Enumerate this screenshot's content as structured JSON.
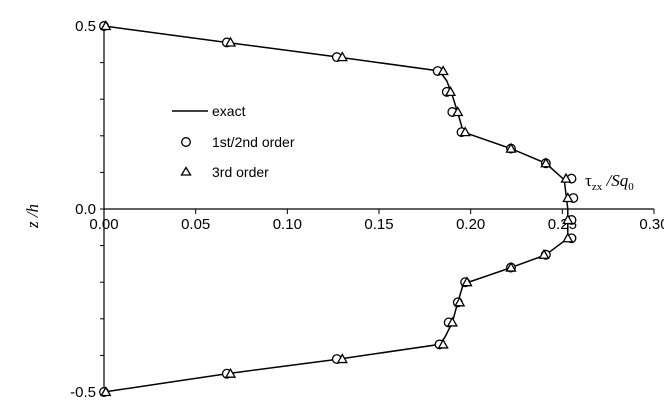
{
  "chart_data": {
    "type": "scatter",
    "xlabel": {
      "main": "τ",
      "sub": "zx",
      "rest": " /Sq",
      "sub2": "0"
    },
    "ylabel": "z /h",
    "xlim": [
      0,
      0.3
    ],
    "ylim": [
      -0.5,
      0.5
    ],
    "xticks": [
      "0.00",
      "0.05",
      "0.10",
      "0.15",
      "0.20",
      "0.25",
      "0.30"
    ],
    "xtick_values": [
      0,
      0.05,
      0.1,
      0.15,
      0.2,
      0.25,
      0.3
    ],
    "yticks": [
      "0.5",
      "0.0",
      "-0.5"
    ],
    "ytick_values": [
      0.5,
      0.0,
      -0.5
    ],
    "grid": false,
    "legend_position": "upper-left",
    "series": [
      {
        "name": "exact",
        "style": "line",
        "points": [
          [
            0.0,
            0.5
          ],
          [
            0.067,
            0.455
          ],
          [
            0.128,
            0.415
          ],
          [
            0.183,
            0.377
          ],
          [
            0.187,
            0.35
          ],
          [
            0.19,
            0.31
          ],
          [
            0.193,
            0.263
          ],
          [
            0.196,
            0.21
          ],
          [
            0.222,
            0.165
          ],
          [
            0.241,
            0.125
          ],
          [
            0.251,
            0.08
          ],
          [
            0.253,
            0.0
          ],
          [
            0.253,
            -0.08
          ],
          [
            0.241,
            -0.125
          ],
          [
            0.222,
            -0.16
          ],
          [
            0.196,
            -0.205
          ],
          [
            0.193,
            -0.255
          ],
          [
            0.19,
            -0.31
          ],
          [
            0.186,
            -0.35
          ],
          [
            0.183,
            -0.37
          ],
          [
            0.128,
            -0.41
          ],
          [
            0.067,
            -0.45
          ],
          [
            0.0,
            -0.5
          ]
        ]
      },
      {
        "name": "1st/2nd order",
        "style": "circle",
        "points": [
          [
            0.0,
            0.5
          ],
          [
            0.067,
            0.455
          ],
          [
            0.127,
            0.415
          ],
          [
            0.182,
            0.377
          ],
          [
            0.187,
            0.32
          ],
          [
            0.19,
            0.265
          ],
          [
            0.195,
            0.21
          ],
          [
            0.222,
            0.165
          ],
          [
            0.241,
            0.125
          ],
          [
            0.255,
            0.083
          ],
          [
            0.256,
            0.03
          ],
          [
            0.255,
            -0.03
          ],
          [
            0.255,
            -0.08
          ],
          [
            0.241,
            -0.125
          ],
          [
            0.222,
            -0.16
          ],
          [
            0.197,
            -0.2
          ],
          [
            0.193,
            -0.255
          ],
          [
            0.188,
            -0.31
          ],
          [
            0.183,
            -0.37
          ],
          [
            0.127,
            -0.41
          ],
          [
            0.067,
            -0.45
          ],
          [
            0.0,
            -0.5
          ]
        ]
      },
      {
        "name": "3rd order",
        "style": "triangle",
        "points": [
          [
            0.001,
            0.5
          ],
          [
            0.069,
            0.455
          ],
          [
            0.13,
            0.415
          ],
          [
            0.185,
            0.377
          ],
          [
            0.189,
            0.32
          ],
          [
            0.193,
            0.265
          ],
          [
            0.197,
            0.21
          ],
          [
            0.222,
            0.165
          ],
          [
            0.241,
            0.125
          ],
          [
            0.252,
            0.083
          ],
          [
            0.253,
            0.03
          ],
          [
            0.253,
            -0.03
          ],
          [
            0.253,
            -0.08
          ],
          [
            0.24,
            -0.125
          ],
          [
            0.222,
            -0.16
          ],
          [
            0.198,
            -0.2
          ],
          [
            0.194,
            -0.255
          ],
          [
            0.19,
            -0.31
          ],
          [
            0.185,
            -0.37
          ],
          [
            0.13,
            -0.41
          ],
          [
            0.069,
            -0.45
          ],
          [
            0.001,
            -0.5
          ]
        ]
      }
    ]
  }
}
